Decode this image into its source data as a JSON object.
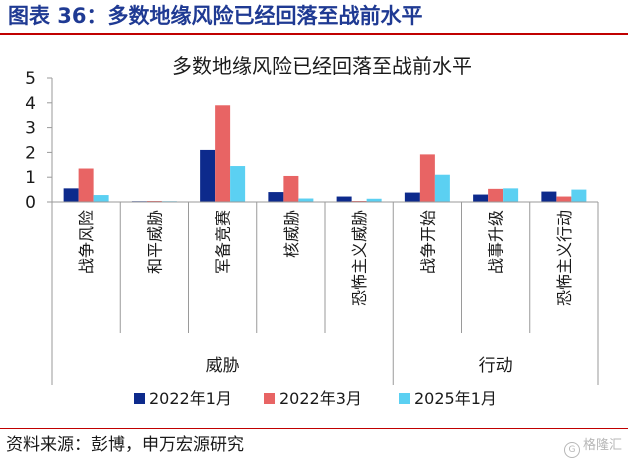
{
  "header": {
    "title": "图表 36：多数地缘风险已经回落至战前水平"
  },
  "footer": {
    "source": "资料来源：彭博，申万宏源研究",
    "watermark": "格隆汇"
  },
  "colors": {
    "title": "#1f3a93",
    "rule": "#c00000",
    "axis": "#9a9a9a"
  },
  "chart_data": {
    "type": "bar",
    "title": "多数地缘风险已经回落至战前水平",
    "categories": [
      "战争风险",
      "和平威胁",
      "军备竞赛",
      "核威胁",
      "恐怖主义威胁",
      "战争开始",
      "战事升级",
      "恐怖主义行动"
    ],
    "groups": [
      {
        "label": "威胁",
        "categories": [
          "战争风险",
          "和平威胁",
          "军备竞赛",
          "核威胁",
          "恐怖主义威胁"
        ]
      },
      {
        "label": "行动",
        "categories": [
          "战争开始",
          "战事升级",
          "恐怖主义行动"
        ]
      }
    ],
    "series": [
      {
        "name": "2022年1月",
        "color": "#0d2a8c",
        "values": [
          0.55,
          0.03,
          2.1,
          0.4,
          0.22,
          0.38,
          0.3,
          0.42
        ]
      },
      {
        "name": "2022年3月",
        "color": "#e86464",
        "values": [
          1.35,
          0.04,
          3.9,
          1.05,
          0.04,
          1.92,
          0.53,
          0.22
        ]
      },
      {
        "name": "2025年1月",
        "color": "#5bd0f2",
        "values": [
          0.28,
          0.03,
          1.45,
          0.14,
          0.13,
          1.1,
          0.55,
          0.5
        ]
      }
    ],
    "ylim": [
      0,
      5
    ],
    "yticks": [
      0,
      1,
      2,
      3,
      4,
      5
    ],
    "xlabel": "",
    "ylabel": "",
    "grid": false,
    "legend_position": "bottom"
  }
}
